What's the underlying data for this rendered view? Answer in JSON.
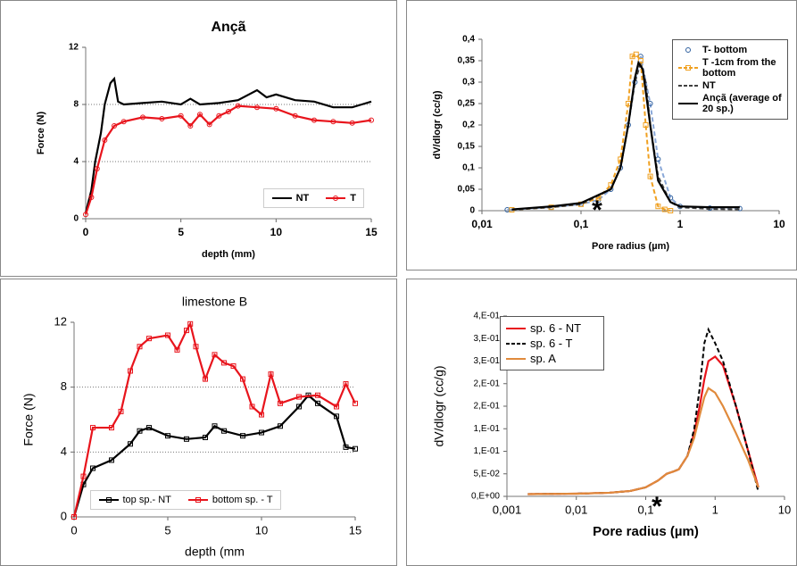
{
  "chart_data": [
    {
      "type": "line",
      "title": "Ançã",
      "xlabel": "depth (mm)",
      "ylabel": "Force (N)",
      "xlim": [
        0,
        15
      ],
      "xticks": [
        0,
        5,
        10,
        15
      ],
      "ylim": [
        0,
        12
      ],
      "yticks": [
        0,
        4,
        8,
        12
      ],
      "grid": true,
      "legend": "lower right",
      "legend_layout": "row",
      "series": [
        {
          "name": "NT",
          "color": "#000000",
          "marker": "none",
          "dash": false,
          "x": [
            0,
            0.3,
            0.5,
            0.8,
            1.0,
            1.3,
            1.5,
            1.7,
            2,
            3,
            4,
            5,
            5.5,
            6,
            7,
            8,
            9,
            9.5,
            10,
            11,
            12,
            13,
            14,
            14.5,
            15
          ],
          "values": [
            0.4,
            2,
            4,
            6,
            8,
            9.5,
            9.8,
            8.2,
            8,
            8.1,
            8.2,
            8,
            8.4,
            8,
            8.1,
            8.3,
            9,
            8.5,
            8.7,
            8.3,
            8.2,
            7.8,
            7.8,
            8,
            8.2
          ]
        },
        {
          "name": "T",
          "color": "#e8141c",
          "marker": "circle",
          "dash": false,
          "x": [
            0,
            0.3,
            0.6,
            1,
            1.5,
            2,
            3,
            4,
            5,
            5.5,
            6,
            6.5,
            7,
            7.5,
            8,
            9,
            10,
            11,
            12,
            13,
            14,
            15
          ],
          "values": [
            0.3,
            1.5,
            3.5,
            5.5,
            6.5,
            6.8,
            7.1,
            7,
            7.2,
            6.5,
            7.3,
            6.6,
            7.2,
            7.5,
            7.9,
            7.8,
            7.7,
            7.2,
            6.9,
            6.8,
            6.7,
            6.9
          ]
        }
      ]
    },
    {
      "type": "line",
      "xlabel": "Pore radius (µm)",
      "ylabel": "dV/dlogr (cc/g)",
      "xscale": "log",
      "annotation": "*",
      "xlim": [
        0.01,
        10
      ],
      "xticks": [
        {
          "value": 0.01,
          "label": "0,01"
        },
        {
          "value": 0.1,
          "label": "0,1"
        },
        1,
        10
      ],
      "ylim": [
        0,
        0.4
      ],
      "yticks": [
        0,
        {
          "value": 0.05,
          "label": "0,05"
        },
        {
          "value": 0.1,
          "label": "0,1"
        },
        {
          "value": 0.15,
          "label": "0,15"
        },
        {
          "value": 0.2,
          "label": "0,2"
        },
        {
          "value": 0.25,
          "label": "0,25"
        },
        {
          "value": 0.3,
          "label": "0,3"
        },
        {
          "value": 0.35,
          "label": "0,35"
        },
        {
          "value": 0.4,
          "label": "0,4"
        }
      ],
      "grid": false,
      "legend": "upper right",
      "legend_layout": "column",
      "series": [
        {
          "name": "T- bottom",
          "color": "#2e5f9e",
          "marker": "circle",
          "dash": true,
          "line_color": "#8aa8d8",
          "x": [
            0.018,
            0.05,
            0.1,
            0.15,
            0.2,
            0.25,
            0.3,
            0.35,
            0.4,
            0.5,
            0.6,
            0.8,
            1,
            2,
            4
          ],
          "values": [
            0.002,
            0.008,
            0.015,
            0.025,
            0.05,
            0.1,
            0.2,
            0.3,
            0.36,
            0.25,
            0.12,
            0.03,
            0.01,
            0.006,
            0.005
          ]
        },
        {
          "name": "T -1cm from the bottom",
          "color": "#f0a020",
          "marker": "square",
          "dash": true,
          "x": [
            0.02,
            0.05,
            0.1,
            0.15,
            0.2,
            0.25,
            0.3,
            0.33,
            0.36,
            0.4,
            0.45,
            0.5,
            0.6,
            0.7,
            0.8
          ],
          "values": [
            0.002,
            0.008,
            0.015,
            0.03,
            0.06,
            0.12,
            0.25,
            0.36,
            0.365,
            0.35,
            0.2,
            0.08,
            0.01,
            0.003,
            0
          ]
        },
        {
          "name": "NT",
          "color": "#404040",
          "marker": "none",
          "dash": true,
          "x": [
            0.02,
            0.05,
            0.1,
            0.2,
            0.25,
            0.3,
            0.35,
            0.4,
            0.45,
            0.5,
            0.6,
            0.8,
            1,
            2,
            4
          ],
          "values": [
            0.002,
            0.008,
            0.015,
            0.05,
            0.1,
            0.2,
            0.3,
            0.345,
            0.3,
            0.2,
            0.08,
            0.02,
            0.008,
            0.004,
            0.003
          ]
        },
        {
          "name": "Ançã (average of 20 sp.)",
          "color": "#000000",
          "marker": "none",
          "dash": false,
          "x": [
            0.02,
            0.05,
            0.1,
            0.2,
            0.25,
            0.3,
            0.35,
            0.38,
            0.42,
            0.5,
            0.6,
            0.8,
            1,
            2,
            4
          ],
          "values": [
            0.003,
            0.01,
            0.018,
            0.05,
            0.1,
            0.2,
            0.31,
            0.345,
            0.33,
            0.2,
            0.07,
            0.02,
            0.01,
            0.008,
            0.008
          ]
        }
      ]
    },
    {
      "type": "line",
      "title": "limestone B",
      "xlabel": "depth (mm",
      "ylabel": "Force (N)",
      "xlim": [
        0,
        15
      ],
      "xticks": [
        0,
        5,
        10,
        15
      ],
      "ylim": [
        0,
        12
      ],
      "yticks": [
        0,
        4,
        8,
        12
      ],
      "grid": true,
      "legend": "lower center",
      "legend_layout": "row",
      "series": [
        {
          "name": "top sp.- NT",
          "color": "#000000",
          "marker": "square",
          "dash": false,
          "x": [
            0,
            0.5,
            1,
            2,
            3,
            3.5,
            4,
            5,
            6,
            7,
            7.5,
            8,
            9,
            10,
            11,
            12,
            12.5,
            13,
            14,
            14.5,
            15
          ],
          "values": [
            0,
            2,
            3,
            3.5,
            4.5,
            5.3,
            5.5,
            5,
            4.8,
            4.9,
            5.6,
            5.3,
            5,
            5.2,
            5.6,
            6.8,
            7.5,
            7,
            6.2,
            4.3,
            4.2
          ]
        },
        {
          "name": "bottom sp. - T",
          "color": "#e8141c",
          "marker": "square",
          "dash": false,
          "x": [
            0,
            0.5,
            1,
            2,
            2.5,
            3,
            3.5,
            4,
            5,
            5.5,
            6,
            6.2,
            6.5,
            7,
            7.5,
            8,
            8.5,
            9,
            9.5,
            10,
            10.5,
            11,
            12,
            13,
            14,
            14.5,
            15
          ],
          "values": [
            0,
            2.5,
            5.5,
            5.5,
            6.5,
            9,
            10.5,
            11,
            11.2,
            10.3,
            11.5,
            11.9,
            10.5,
            8.5,
            10,
            9.5,
            9.3,
            8.5,
            6.8,
            6.3,
            8.8,
            7,
            7.4,
            7.5,
            6.8,
            8.2,
            7
          ]
        }
      ]
    },
    {
      "type": "line",
      "xlabel": "Pore radius (µm)",
      "ylabel": "dV/dlogr  (cc/g)",
      "xscale": "log",
      "annotation": "*",
      "xlim": [
        0.001,
        10
      ],
      "xticks": [
        {
          "value": 0.001,
          "label": "0,001"
        },
        {
          "value": 0.01,
          "label": "0,01"
        },
        {
          "value": 0.1,
          "label": "0,1"
        },
        1,
        10
      ],
      "ylim": [
        0,
        0.4
      ],
      "yticks": [
        {
          "value": 0,
          "label": "0,E+00"
        },
        {
          "value": 0.05,
          "label": "5,E-02"
        },
        {
          "value": 0.1,
          "label": "1,E-01"
        },
        {
          "value": 0.15,
          "label": "1,E-01"
        },
        {
          "value": 0.2,
          "label": "2,E-01"
        },
        {
          "value": 0.25,
          "label": "2,E-01"
        },
        {
          "value": 0.3,
          "label": "3,E-01"
        },
        {
          "value": 0.35,
          "label": "3,E-01"
        },
        {
          "value": 0.4,
          "label": "4,E-01"
        }
      ],
      "grid": false,
      "legend": "upper left",
      "legend_layout": "column",
      "series": [
        {
          "name": "sp. 6 - NT",
          "color": "#e8141c",
          "marker": "none",
          "dash": false,
          "x": [
            0.002,
            0.01,
            0.03,
            0.06,
            0.1,
            0.15,
            0.2,
            0.25,
            0.3,
            0.4,
            0.5,
            0.6,
            0.7,
            0.8,
            1,
            1.3,
            2,
            3,
            4.2
          ],
          "values": [
            0.005,
            0.006,
            0.008,
            0.012,
            0.02,
            0.035,
            0.05,
            0.055,
            0.06,
            0.09,
            0.14,
            0.2,
            0.26,
            0.3,
            0.31,
            0.29,
            0.2,
            0.1,
            0.02
          ]
        },
        {
          "name": "sp. 6 - T",
          "color": "#000000",
          "marker": "none",
          "dash": true,
          "x": [
            0.002,
            0.01,
            0.03,
            0.06,
            0.1,
            0.15,
            0.2,
            0.25,
            0.3,
            0.4,
            0.5,
            0.6,
            0.7,
            0.8,
            1,
            1.3,
            2,
            3,
            4.2
          ],
          "values": [
            0.005,
            0.006,
            0.008,
            0.012,
            0.02,
            0.035,
            0.05,
            0.055,
            0.06,
            0.09,
            0.15,
            0.24,
            0.34,
            0.37,
            0.34,
            0.3,
            0.2,
            0.1,
            0.01
          ]
        },
        {
          "name": "sp. A",
          "color": "#e08a3c",
          "marker": "none",
          "dash": false,
          "x": [
            0.002,
            0.01,
            0.03,
            0.06,
            0.1,
            0.15,
            0.2,
            0.25,
            0.3,
            0.4,
            0.5,
            0.6,
            0.7,
            0.8,
            1,
            1.3,
            2,
            3,
            4.2
          ],
          "values": [
            0.005,
            0.006,
            0.008,
            0.012,
            0.02,
            0.035,
            0.05,
            0.055,
            0.06,
            0.09,
            0.13,
            0.18,
            0.22,
            0.24,
            0.23,
            0.2,
            0.14,
            0.08,
            0.02
          ]
        }
      ]
    }
  ]
}
